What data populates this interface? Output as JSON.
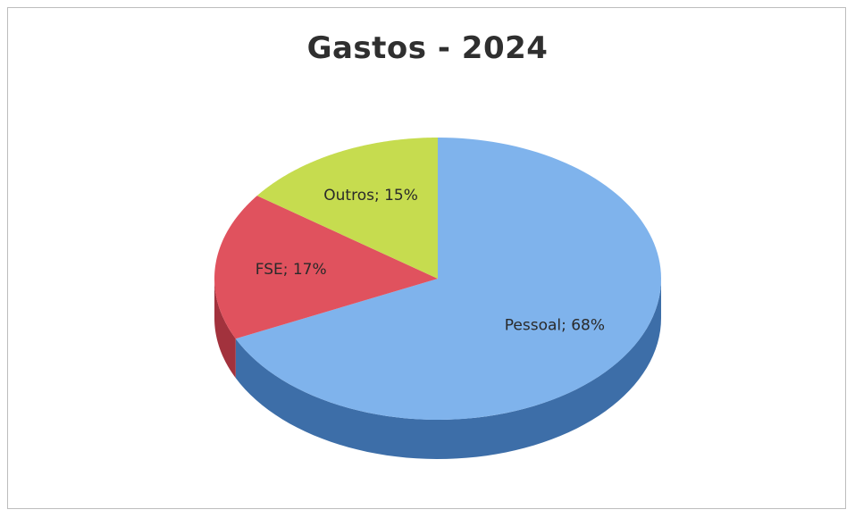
{
  "chart_data": {
    "type": "pie",
    "title": "Gastos - 2024",
    "slices": [
      {
        "label": "Pessoal",
        "value": 68,
        "display": "Pessoal; 68%",
        "color": "#7fb3ec",
        "side": "#3d6ea8"
      },
      {
        "label": "FSE",
        "value": 17,
        "display": "FSE; 17%",
        "color": "#e0525e",
        "side": "#a2323d"
      },
      {
        "label": "Outros",
        "value": 15,
        "display": "Outros; 15%",
        "color": "#c6dc4f",
        "side": "#8fa32f"
      }
    ],
    "unit": "%",
    "three_d": true,
    "legend": "none"
  }
}
